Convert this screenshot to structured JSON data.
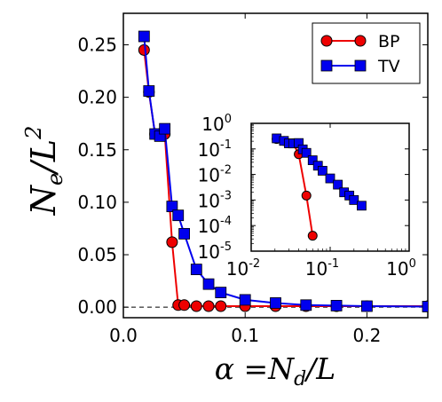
{
  "chart_data": [
    {
      "type": "line",
      "xlim": [
        0,
        0.25
      ],
      "ylim": [
        -0.01,
        0.28
      ],
      "x_ticks": [
        "0.0",
        "0.1",
        "0.2"
      ],
      "x_tick_values": [
        0,
        0.1,
        0.2
      ],
      "y_ticks": [
        "0.00",
        "0.05",
        "0.10",
        "0.15",
        "0.20",
        "0.25"
      ],
      "y_tick_values": [
        0,
        0.05,
        0.1,
        0.15,
        0.2,
        0.25
      ],
      "xlabel": {
        "pre": "α =",
        "main": "N",
        "sub": "d",
        "post": "/L"
      },
      "ylabel": {
        "main": "N",
        "sub": "e",
        "mid": "/L",
        "sup": "2"
      },
      "reference_line": {
        "y": 0,
        "style": "dashed"
      },
      "legend": {
        "placement": "top-right",
        "entries": [
          "BP",
          "TV"
        ]
      },
      "series": [
        {
          "name": "BP",
          "color": "#ee0000",
          "marker": "circle",
          "x": [
            0.017,
            0.021,
            0.026,
            0.03,
            0.034,
            0.04,
            0.045,
            0.05,
            0.06,
            0.07,
            0.08,
            0.1,
            0.125,
            0.15,
            0.175,
            0.2,
            0.25
          ],
          "y": [
            0.245,
            0.205,
            0.165,
            0.165,
            0.165,
            0.062,
            0.002,
            0.002,
            0.001,
            0.001,
            0.001,
            0.001,
            0.001,
            0.001,
            0.001,
            0.001,
            0.001
          ]
        },
        {
          "name": "TV",
          "color": "#0000ee",
          "marker": "square",
          "x": [
            0.017,
            0.021,
            0.026,
            0.03,
            0.034,
            0.04,
            0.045,
            0.05,
            0.06,
            0.07,
            0.08,
            0.1,
            0.125,
            0.15,
            0.175,
            0.2,
            0.25
          ],
          "y": [
            0.258,
            0.206,
            0.165,
            0.163,
            0.17,
            0.096,
            0.0875,
            0.07,
            0.036,
            0.022,
            0.014,
            0.007,
            0.004,
            0.002,
            0.0015,
            0.001,
            0.0006
          ]
        }
      ]
    },
    {
      "type": "line",
      "role": "inset",
      "xscale": "log",
      "yscale": "log",
      "xlim": [
        0.01,
        1
      ],
      "ylim": [
        1e-05,
        1
      ],
      "x_ticks": [
        {
          "base": "10",
          "exp": "-2",
          "value": 0.01
        },
        {
          "base": "10",
          "exp": "-1",
          "value": 0.1
        },
        {
          "base": "10",
          "exp": "0",
          "value": 1
        }
      ],
      "y_ticks": [
        {
          "base": "10",
          "exp": "0",
          "value": 1
        },
        {
          "base": "10",
          "exp": "-1",
          "value": 0.1
        },
        {
          "base": "10",
          "exp": "-2",
          "value": 0.01
        },
        {
          "base": "10",
          "exp": "-3",
          "value": 0.001
        },
        {
          "base": "10",
          "exp": "-4",
          "value": 0.0001
        },
        {
          "base": "10",
          "exp": "-5",
          "value": 1e-05
        }
      ],
      "series": [
        {
          "name": "BP",
          "color": "#ee0000",
          "marker": "circle",
          "x": [
            0.021,
            0.026,
            0.03,
            0.034,
            0.04,
            0.05,
            0.06
          ],
          "y": [
            0.245,
            0.205,
            0.165,
            0.165,
            0.062,
            0.0015,
            4e-05
          ]
        },
        {
          "name": "TV",
          "color": "#0000ee",
          "marker": "square",
          "x": [
            0.021,
            0.026,
            0.03,
            0.034,
            0.04,
            0.045,
            0.05,
            0.06,
            0.07,
            0.08,
            0.1,
            0.125,
            0.15,
            0.175,
            0.2,
            0.25
          ],
          "y": [
            0.258,
            0.206,
            0.165,
            0.163,
            0.17,
            0.096,
            0.07,
            0.036,
            0.022,
            0.014,
            0.007,
            0.004,
            0.002,
            0.0015,
            0.001,
            0.0006
          ]
        }
      ]
    }
  ]
}
